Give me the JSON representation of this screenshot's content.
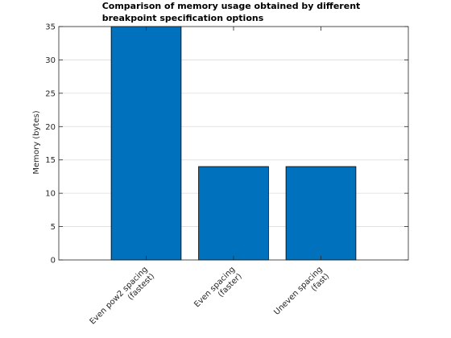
{
  "chart_data": {
    "type": "bar",
    "title_lines": [
      "Comparison of memory usage obtained by different",
      "breakpoint specification options"
    ],
    "xlabel": "",
    "ylabel": "Memory (bytes)",
    "categories": [
      [
        "Even pow2 spacing",
        "(fastest)"
      ],
      [
        "Even spacing",
        "(faster)"
      ],
      [
        "Uneven spacing",
        "(fast)"
      ]
    ],
    "values": [
      35,
      14,
      14
    ],
    "ylim": [
      0,
      35
    ],
    "xlim": [
      0,
      4
    ],
    "yticks": [
      0,
      5,
      10,
      15,
      20,
      25,
      30,
      35
    ],
    "grid": true,
    "bar_color": "#0072BD",
    "bar_edge_color": "#000000",
    "grid_color": "#dcdcdc"
  }
}
